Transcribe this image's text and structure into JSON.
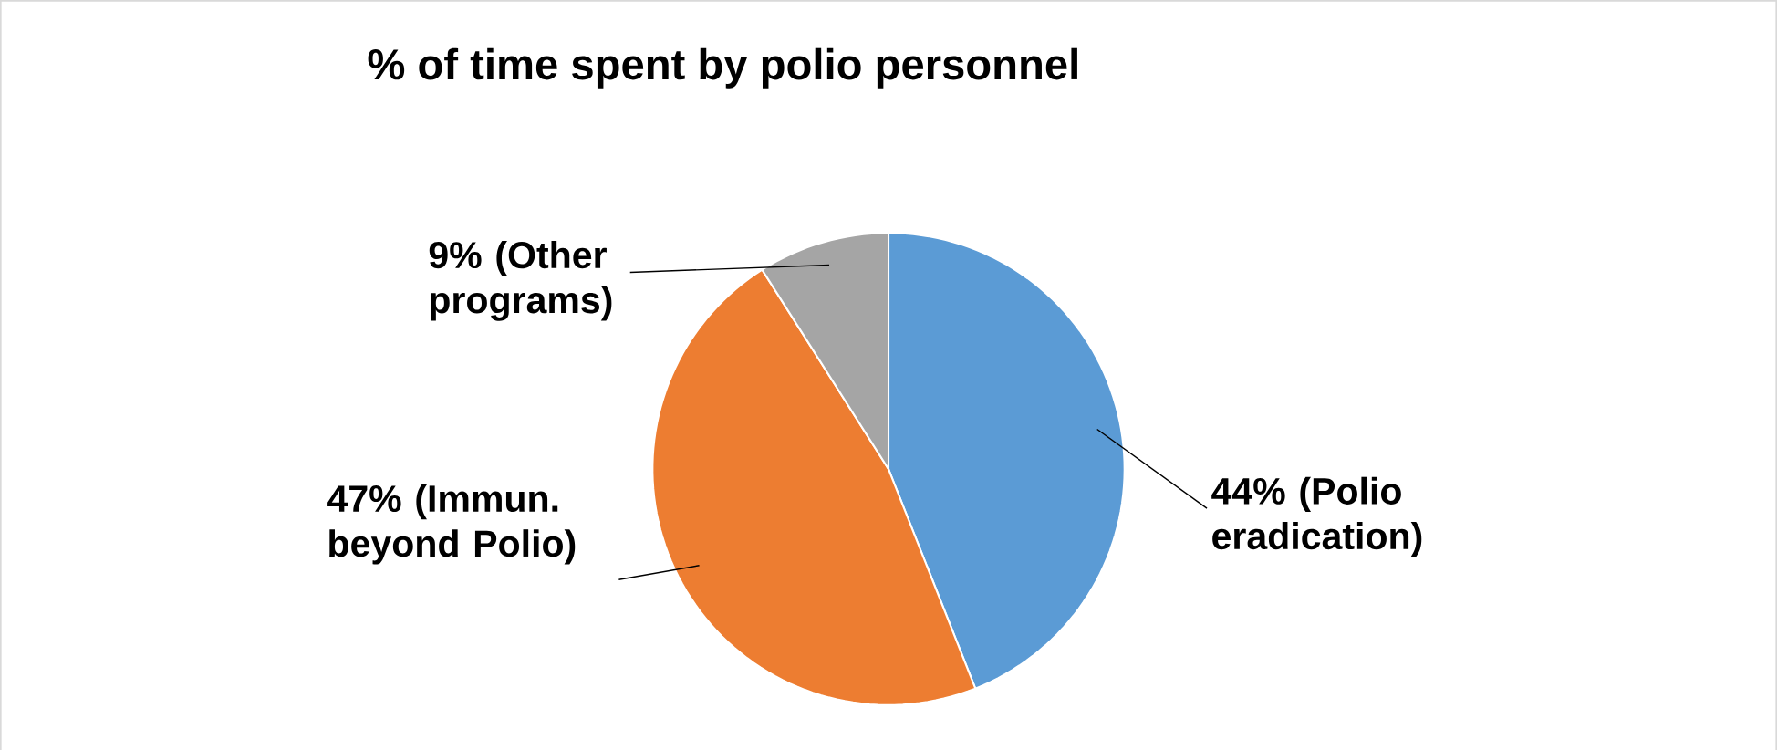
{
  "chart_data": {
    "type": "pie",
    "title": "% of time spent by polio personnel",
    "categories": [
      "44% (Polio eradication)",
      "47% (Immun. beyond Polio)",
      "9% (Other programs)"
    ],
    "values": [
      44,
      47,
      9
    ],
    "colors": [
      "#5b9bd5",
      "#ed7d31",
      "#a5a5a5"
    ]
  }
}
